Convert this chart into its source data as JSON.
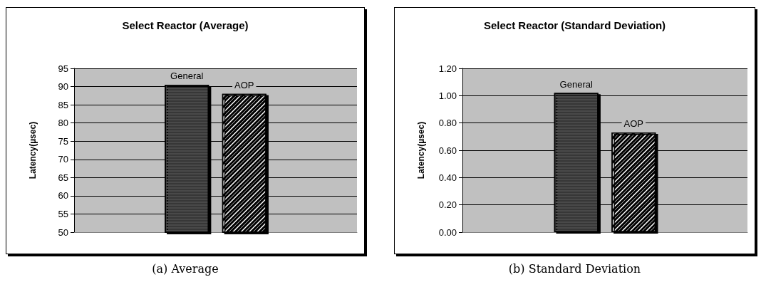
{
  "chart_data": [
    {
      "type": "bar",
      "title": "Select Reactor (Average)",
      "ylabel": "Latency(µsec)",
      "categories": [
        null
      ],
      "series": [
        {
          "name": "General",
          "color": "#3a3a3a",
          "values": [
            90.5
          ]
        },
        {
          "name": "AOP",
          "color": "#ffffff",
          "values": [
            88
          ]
        }
      ],
      "ylim": [
        50,
        95
      ],
      "yticks": [
        50,
        55,
        60,
        65,
        70,
        75,
        80,
        85,
        90,
        95
      ],
      "grid": "y",
      "legend": false,
      "annotations": [
        "(a)  Average"
      ]
    },
    {
      "type": "bar",
      "title": "Select Reactor (Standard Deviation)",
      "ylabel": "Latency(µsec)",
      "categories": [
        null
      ],
      "series": [
        {
          "name": "General",
          "color": "#3a3a3a",
          "values": [
            1.02
          ]
        },
        {
          "name": "AOP",
          "color": "#ffffff",
          "values": [
            0.73
          ]
        }
      ],
      "ylim": [
        0,
        1.2
      ],
      "yticks": [
        {
          "value": 0,
          "label": "0.00"
        },
        {
          "value": 0.2,
          "label": "0.20"
        },
        {
          "value": 0.4,
          "label": "0.40"
        },
        {
          "value": 0.6,
          "label": "0.60"
        },
        {
          "value": 0.8,
          "label": "0.80"
        },
        {
          "value": 1,
          "label": "1.00"
        },
        {
          "value": 1.2,
          "label": "1.20"
        }
      ],
      "grid": "y",
      "legend": false,
      "annotations": [
        "(b)  Standard Deviation"
      ]
    }
  ]
}
